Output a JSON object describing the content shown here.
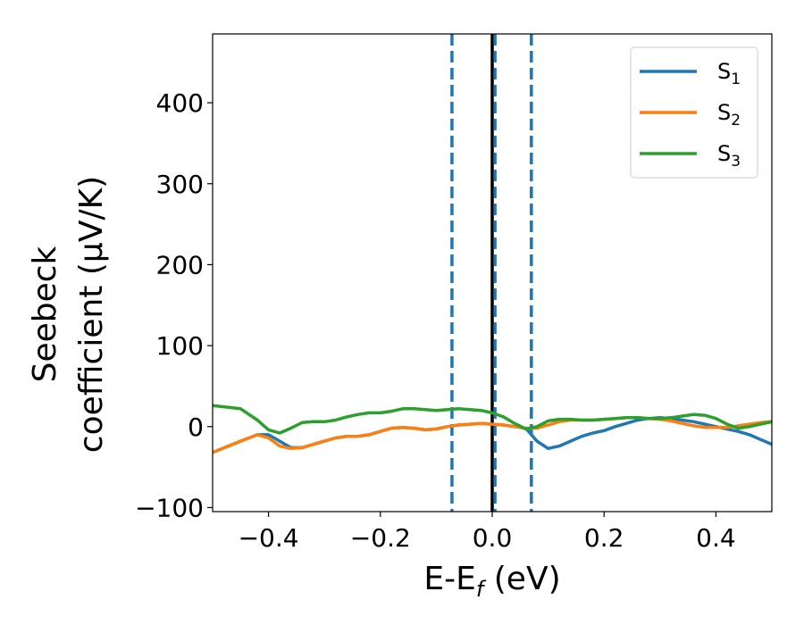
{
  "chart_data": {
    "type": "line",
    "xlabel": {
      "main": "E-E",
      "sub": "f",
      "tail": " (eV)"
    },
    "ylabel": {
      "line1": "Seebeck",
      "line2": "coefficient  (μV/K)"
    },
    "xlim": [
      -0.5,
      0.5
    ],
    "ylim": [
      -105,
      485
    ],
    "xticks": [
      -0.4,
      -0.2,
      0.0,
      0.2,
      0.4
    ],
    "xtick_labels": [
      "−0.4",
      "−0.2",
      "0.0",
      "0.2",
      "0.4"
    ],
    "yticks": [
      -100,
      0,
      100,
      200,
      300,
      400
    ],
    "ytick_labels": [
      "−100",
      "0",
      "100",
      "200",
      "300",
      "400"
    ],
    "legend_position": "top-right",
    "vlines": [
      {
        "x": 0.0,
        "color": "#000000",
        "style": "solid"
      },
      {
        "x": 0.005,
        "color": "#1f77b4",
        "style": "dashed"
      },
      {
        "x": -0.072,
        "color": "#1f77b4",
        "style": "dashed"
      },
      {
        "x": 0.07,
        "color": "#1f77b4",
        "style": "dashed"
      }
    ],
    "x": [
      -0.5,
      -0.45,
      -0.42,
      -0.4,
      -0.38,
      -0.36,
      -0.34,
      -0.32,
      -0.3,
      -0.28,
      -0.26,
      -0.24,
      -0.22,
      -0.2,
      -0.18,
      -0.16,
      -0.14,
      -0.12,
      -0.1,
      -0.08,
      -0.06,
      -0.04,
      -0.02,
      0.0,
      0.02,
      0.04,
      0.06,
      0.08,
      0.1,
      0.12,
      0.14,
      0.16,
      0.18,
      0.2,
      0.22,
      0.24,
      0.26,
      0.28,
      0.3,
      0.32,
      0.34,
      0.36,
      0.38,
      0.4,
      0.42,
      0.44,
      0.46,
      0.48,
      0.5
    ],
    "series": [
      {
        "name": "S",
        "name_sub": "1",
        "color": "#1f77b4",
        "values": [
          -32,
          -18,
          -10,
          -10,
          -18,
          -26,
          -26,
          -22,
          -18,
          -14,
          -12,
          -12,
          -10,
          -6,
          -2,
          -1,
          -2,
          -4,
          -3,
          0,
          2,
          3,
          4,
          3,
          2,
          0,
          -2,
          -18,
          -27,
          -24,
          -18,
          -12,
          -8,
          -5,
          0,
          4,
          8,
          10,
          11,
          10,
          8,
          6,
          3,
          0,
          -3,
          -6,
          -10,
          -16,
          -22
        ]
      },
      {
        "name": "S",
        "name_sub": "2",
        "color": "#ff7f0e",
        "values": [
          -32,
          -18,
          -10,
          -14,
          -24,
          -27,
          -26,
          -22,
          -18,
          -14,
          -12,
          -12,
          -10,
          -6,
          -2,
          -1,
          -2,
          -4,
          -3,
          0,
          2,
          3,
          4,
          3,
          2,
          0,
          -2,
          -2,
          2,
          6,
          8,
          8,
          8,
          9,
          10,
          11,
          11,
          10,
          9,
          7,
          4,
          1,
          -1,
          -1,
          -1,
          1,
          3,
          5,
          6
        ]
      },
      {
        "name": "S",
        "name_sub": "3",
        "color": "#2ca02c",
        "values": [
          26,
          22,
          8,
          -4,
          -8,
          -2,
          5,
          6,
          6,
          8,
          12,
          15,
          17,
          17,
          19,
          22,
          22,
          21,
          20,
          21,
          22,
          21,
          20,
          17,
          12,
          4,
          -3,
          0,
          7,
          9,
          9,
          8,
          8,
          9,
          10,
          11,
          11,
          10,
          10,
          11,
          13,
          15,
          14,
          10,
          3,
          -2,
          0,
          3,
          6
        ]
      }
    ]
  }
}
